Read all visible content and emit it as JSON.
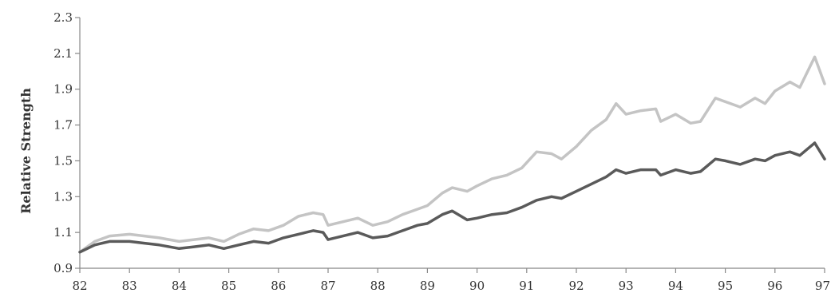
{
  "chart_data": {
    "type": "line",
    "xlabel": "",
    "ylabel": "Relative Strength",
    "xlim": [
      82,
      97
    ],
    "ylim": [
      0.9,
      2.3
    ],
    "x_ticks": [
      "82",
      "83",
      "84",
      "85",
      "86",
      "87",
      "88",
      "89",
      "90",
      "91",
      "92",
      "93",
      "94",
      "95",
      "96",
      "97"
    ],
    "y_ticks": [
      "0.9",
      "1.1",
      "1.3",
      "1.5",
      "1.7",
      "1.9",
      "2.1",
      "2.3"
    ],
    "grid": false,
    "series": [
      {
        "color": "#c4c4c4",
        "points": [
          [
            82.0,
            0.99
          ],
          [
            82.3,
            1.05
          ],
          [
            82.6,
            1.08
          ],
          [
            83.0,
            1.09
          ],
          [
            83.3,
            1.08
          ],
          [
            83.6,
            1.07
          ],
          [
            84.0,
            1.05
          ],
          [
            84.3,
            1.06
          ],
          [
            84.6,
            1.07
          ],
          [
            84.9,
            1.05
          ],
          [
            85.2,
            1.09
          ],
          [
            85.5,
            1.12
          ],
          [
            85.8,
            1.11
          ],
          [
            86.1,
            1.14
          ],
          [
            86.4,
            1.19
          ],
          [
            86.7,
            1.21
          ],
          [
            86.9,
            1.2
          ],
          [
            87.0,
            1.14
          ],
          [
            87.3,
            1.16
          ],
          [
            87.6,
            1.18
          ],
          [
            87.9,
            1.14
          ],
          [
            88.2,
            1.16
          ],
          [
            88.5,
            1.2
          ],
          [
            88.8,
            1.23
          ],
          [
            89.0,
            1.25
          ],
          [
            89.3,
            1.32
          ],
          [
            89.5,
            1.35
          ],
          [
            89.8,
            1.33
          ],
          [
            90.0,
            1.36
          ],
          [
            90.3,
            1.4
          ],
          [
            90.6,
            1.42
          ],
          [
            90.9,
            1.46
          ],
          [
            91.2,
            1.55
          ],
          [
            91.5,
            1.54
          ],
          [
            91.7,
            1.51
          ],
          [
            92.0,
            1.58
          ],
          [
            92.3,
            1.67
          ],
          [
            92.6,
            1.73
          ],
          [
            92.8,
            1.82
          ],
          [
            93.0,
            1.76
          ],
          [
            93.3,
            1.78
          ],
          [
            93.6,
            1.79
          ],
          [
            93.7,
            1.72
          ],
          [
            94.0,
            1.76
          ],
          [
            94.3,
            1.71
          ],
          [
            94.5,
            1.72
          ],
          [
            94.8,
            1.85
          ],
          [
            95.0,
            1.83
          ],
          [
            95.3,
            1.8
          ],
          [
            95.6,
            1.85
          ],
          [
            95.8,
            1.82
          ],
          [
            96.0,
            1.89
          ],
          [
            96.3,
            1.94
          ],
          [
            96.5,
            1.91
          ],
          [
            96.8,
            2.08
          ],
          [
            97.0,
            1.93
          ]
        ]
      },
      {
        "color": "#5a5a5a",
        "points": [
          [
            82.0,
            0.99
          ],
          [
            82.3,
            1.03
          ],
          [
            82.6,
            1.05
          ],
          [
            83.0,
            1.05
          ],
          [
            83.3,
            1.04
          ],
          [
            83.6,
            1.03
          ],
          [
            84.0,
            1.01
          ],
          [
            84.3,
            1.02
          ],
          [
            84.6,
            1.03
          ],
          [
            84.9,
            1.01
          ],
          [
            85.2,
            1.03
          ],
          [
            85.5,
            1.05
          ],
          [
            85.8,
            1.04
          ],
          [
            86.1,
            1.07
          ],
          [
            86.4,
            1.09
          ],
          [
            86.7,
            1.11
          ],
          [
            86.9,
            1.1
          ],
          [
            87.0,
            1.06
          ],
          [
            87.3,
            1.08
          ],
          [
            87.6,
            1.1
          ],
          [
            87.9,
            1.07
          ],
          [
            88.2,
            1.08
          ],
          [
            88.5,
            1.11
          ],
          [
            88.8,
            1.14
          ],
          [
            89.0,
            1.15
          ],
          [
            89.3,
            1.2
          ],
          [
            89.5,
            1.22
          ],
          [
            89.8,
            1.17
          ],
          [
            90.0,
            1.18
          ],
          [
            90.3,
            1.2
          ],
          [
            90.6,
            1.21
          ],
          [
            90.9,
            1.24
          ],
          [
            91.2,
            1.28
          ],
          [
            91.5,
            1.3
          ],
          [
            91.7,
            1.29
          ],
          [
            92.0,
            1.33
          ],
          [
            92.3,
            1.37
          ],
          [
            92.6,
            1.41
          ],
          [
            92.8,
            1.45
          ],
          [
            93.0,
            1.43
          ],
          [
            93.3,
            1.45
          ],
          [
            93.6,
            1.45
          ],
          [
            93.7,
            1.42
          ],
          [
            94.0,
            1.45
          ],
          [
            94.3,
            1.43
          ],
          [
            94.5,
            1.44
          ],
          [
            94.8,
            1.51
          ],
          [
            95.0,
            1.5
          ],
          [
            95.3,
            1.48
          ],
          [
            95.6,
            1.51
          ],
          [
            95.8,
            1.5
          ],
          [
            96.0,
            1.53
          ],
          [
            96.3,
            1.55
          ],
          [
            96.5,
            1.53
          ],
          [
            96.8,
            1.6
          ],
          [
            97.0,
            1.51
          ]
        ]
      }
    ]
  }
}
